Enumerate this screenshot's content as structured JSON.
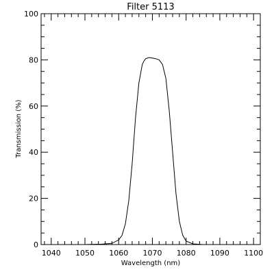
{
  "chart_data": {
    "type": "line",
    "title": "Filter 5113",
    "xlabel": "Wavelength (nm)",
    "ylabel": "Transmission (%)",
    "xlim": [
      1037,
      1102
    ],
    "ylim": [
      0,
      100
    ],
    "xticks": [
      1040,
      1050,
      1060,
      1070,
      1080,
      1090,
      1100
    ],
    "yticks": [
      0,
      20,
      40,
      60,
      80,
      100
    ],
    "xminor_step": 2,
    "yminor_step": 5,
    "grid": false,
    "series": [
      {
        "x": [
          1042,
          1050,
          1055,
          1058,
          1060,
          1061,
          1062,
          1063,
          1064,
          1065,
          1066,
          1067,
          1067.5,
          1068,
          1069,
          1070,
          1071,
          1072,
          1073,
          1074,
          1075,
          1076,
          1077,
          1078,
          1079,
          1080,
          1082,
          1085,
          1090
        ],
        "y": [
          0,
          0,
          0.2,
          0.5,
          2,
          4,
          9,
          19,
          35,
          55,
          70,
          78,
          79.5,
          80.5,
          81,
          80.8,
          80.5,
          80,
          78,
          72,
          58,
          40,
          22,
          10,
          4,
          1.5,
          0.3,
          0,
          0
        ]
      }
    ]
  }
}
